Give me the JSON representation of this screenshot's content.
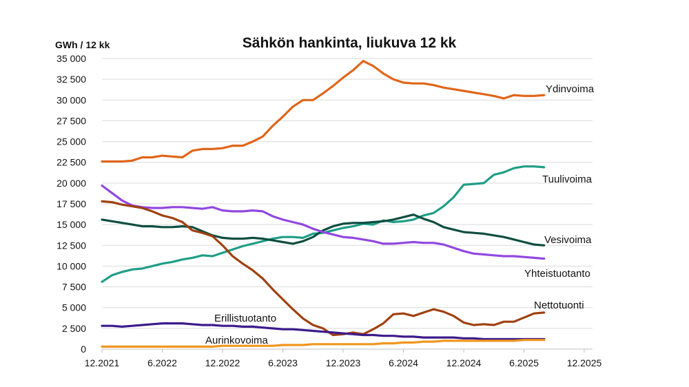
{
  "chart_data": {
    "type": "line",
    "title": "Sähkön hankinta, liukuva 12 kk",
    "ylabel": "GWh / 12 kk",
    "ylim": [
      0,
      35000
    ],
    "y_ticks": [
      0,
      2500,
      5000,
      7500,
      10000,
      12500,
      15000,
      17500,
      20000,
      22500,
      25000,
      27500,
      30000,
      32500,
      35000
    ],
    "y_tick_labels": [
      "0",
      "2 500",
      "5 000",
      "7 500",
      "10 000",
      "12 500",
      "15 000",
      "17 500",
      "20 000",
      "22 500",
      "25 000",
      "27 500",
      "30 000",
      "32 500",
      "35 000"
    ],
    "x_ticks": [
      "12.2021",
      "6.2022",
      "12.2022",
      "6.2023",
      "12.2023",
      "6.2024",
      "12.2024",
      "6.2025",
      "12.2025"
    ],
    "x_start": "12.2021",
    "x_step": "1 kk",
    "grid": true,
    "legend": "labels next to lines",
    "series": [
      {
        "name": "Ydinvoima",
        "color": "#e06519",
        "values": [
          22600,
          22600,
          22600,
          22700,
          23100,
          23100,
          23300,
          23200,
          23100,
          23900,
          24100,
          24100,
          24200,
          24500,
          24500,
          25000,
          25600,
          26900,
          28000,
          29200,
          30000,
          30000,
          30800,
          31700,
          32700,
          33600,
          34700,
          34100,
          33200,
          32500,
          32100,
          32000,
          32000,
          31800,
          31500,
          31300,
          31100,
          30900,
          30700,
          30500,
          30200,
          30600,
          30500,
          30500,
          30600
        ]
      },
      {
        "name": "Tuulivoima",
        "color": "#1f9e86",
        "values": [
          8100,
          8900,
          9300,
          9600,
          9700,
          10000,
          10300,
          10500,
          10800,
          11000,
          11300,
          11200,
          11600,
          12000,
          12400,
          12700,
          13000,
          13300,
          13500,
          13500,
          13400,
          13900,
          14000,
          14300,
          14600,
          14800,
          15100,
          15000,
          15500,
          15300,
          15400,
          15600,
          16100,
          16400,
          17200,
          18300,
          19800,
          19900,
          20000,
          21000,
          21300,
          21800,
          22000,
          22000,
          21900
        ]
      },
      {
        "name": "Vesivoima",
        "color": "#0d4d40",
        "values": [
          15600,
          15400,
          15200,
          15000,
          14800,
          14800,
          14700,
          14700,
          14800,
          14700,
          14200,
          13700,
          13400,
          13300,
          13300,
          13400,
          13300,
          13100,
          12900,
          12700,
          13000,
          13500,
          14300,
          14800,
          15100,
          15200,
          15200,
          15300,
          15400,
          15600,
          15900,
          16200,
          15700,
          15300,
          14700,
          14400,
          14100,
          14000,
          13900,
          13700,
          13500,
          13200,
          12900,
          12600,
          12500
        ]
      },
      {
        "name": "Yhteistuotanto",
        "color": "#9147e0",
        "values": [
          19700,
          18800,
          17900,
          17300,
          17100,
          17000,
          17000,
          17100,
          17100,
          17000,
          16900,
          17100,
          16700,
          16600,
          16600,
          16700,
          16600,
          16000,
          15600,
          15300,
          15000,
          14500,
          14100,
          13800,
          13500,
          13400,
          13200,
          13000,
          12700,
          12700,
          12800,
          12900,
          12800,
          12800,
          12600,
          12200,
          11800,
          11500,
          11400,
          11300,
          11200,
          11200,
          11100,
          11000,
          10900
        ]
      },
      {
        "name": "Nettotuonti",
        "color": "#a0400f",
        "values": [
          17800,
          17700,
          17400,
          17200,
          17000,
          16600,
          16100,
          15800,
          15300,
          14300,
          14000,
          13600,
          12500,
          11200,
          10300,
          9500,
          8500,
          7200,
          6000,
          4800,
          3700,
          2900,
          2500,
          1700,
          1800,
          2000,
          1800,
          2400,
          3100,
          4200,
          4300,
          4000,
          4400,
          4800,
          4500,
          4000,
          3200,
          2900,
          3000,
          2900,
          3300,
          3300,
          3800,
          4300,
          4400
        ]
      },
      {
        "name": "Erillistuotanto",
        "color": "#3c1a8c",
        "values": [
          2800,
          2800,
          2700,
          2800,
          2900,
          3000,
          3100,
          3100,
          3100,
          3000,
          2900,
          2900,
          2800,
          2800,
          2700,
          2700,
          2600,
          2500,
          2400,
          2400,
          2300,
          2200,
          2100,
          2000,
          1900,
          1800,
          1700,
          1700,
          1600,
          1600,
          1500,
          1500,
          1400,
          1400,
          1400,
          1400,
          1300,
          1300,
          1200,
          1200,
          1200,
          1200,
          1200,
          1200,
          1200
        ]
      },
      {
        "name": "Aurinkovoima",
        "color": "#f0961e",
        "values": [
          300,
          300,
          300,
          300,
          300,
          300,
          300,
          300,
          300,
          300,
          300,
          300,
          400,
          400,
          400,
          400,
          400,
          400,
          500,
          500,
          500,
          600,
          600,
          600,
          600,
          600,
          600,
          600,
          700,
          700,
          800,
          800,
          900,
          900,
          1000,
          1000,
          1000,
          1000,
          1000,
          1000,
          1000,
          1000,
          1100,
          1100,
          1100
        ]
      }
    ]
  }
}
